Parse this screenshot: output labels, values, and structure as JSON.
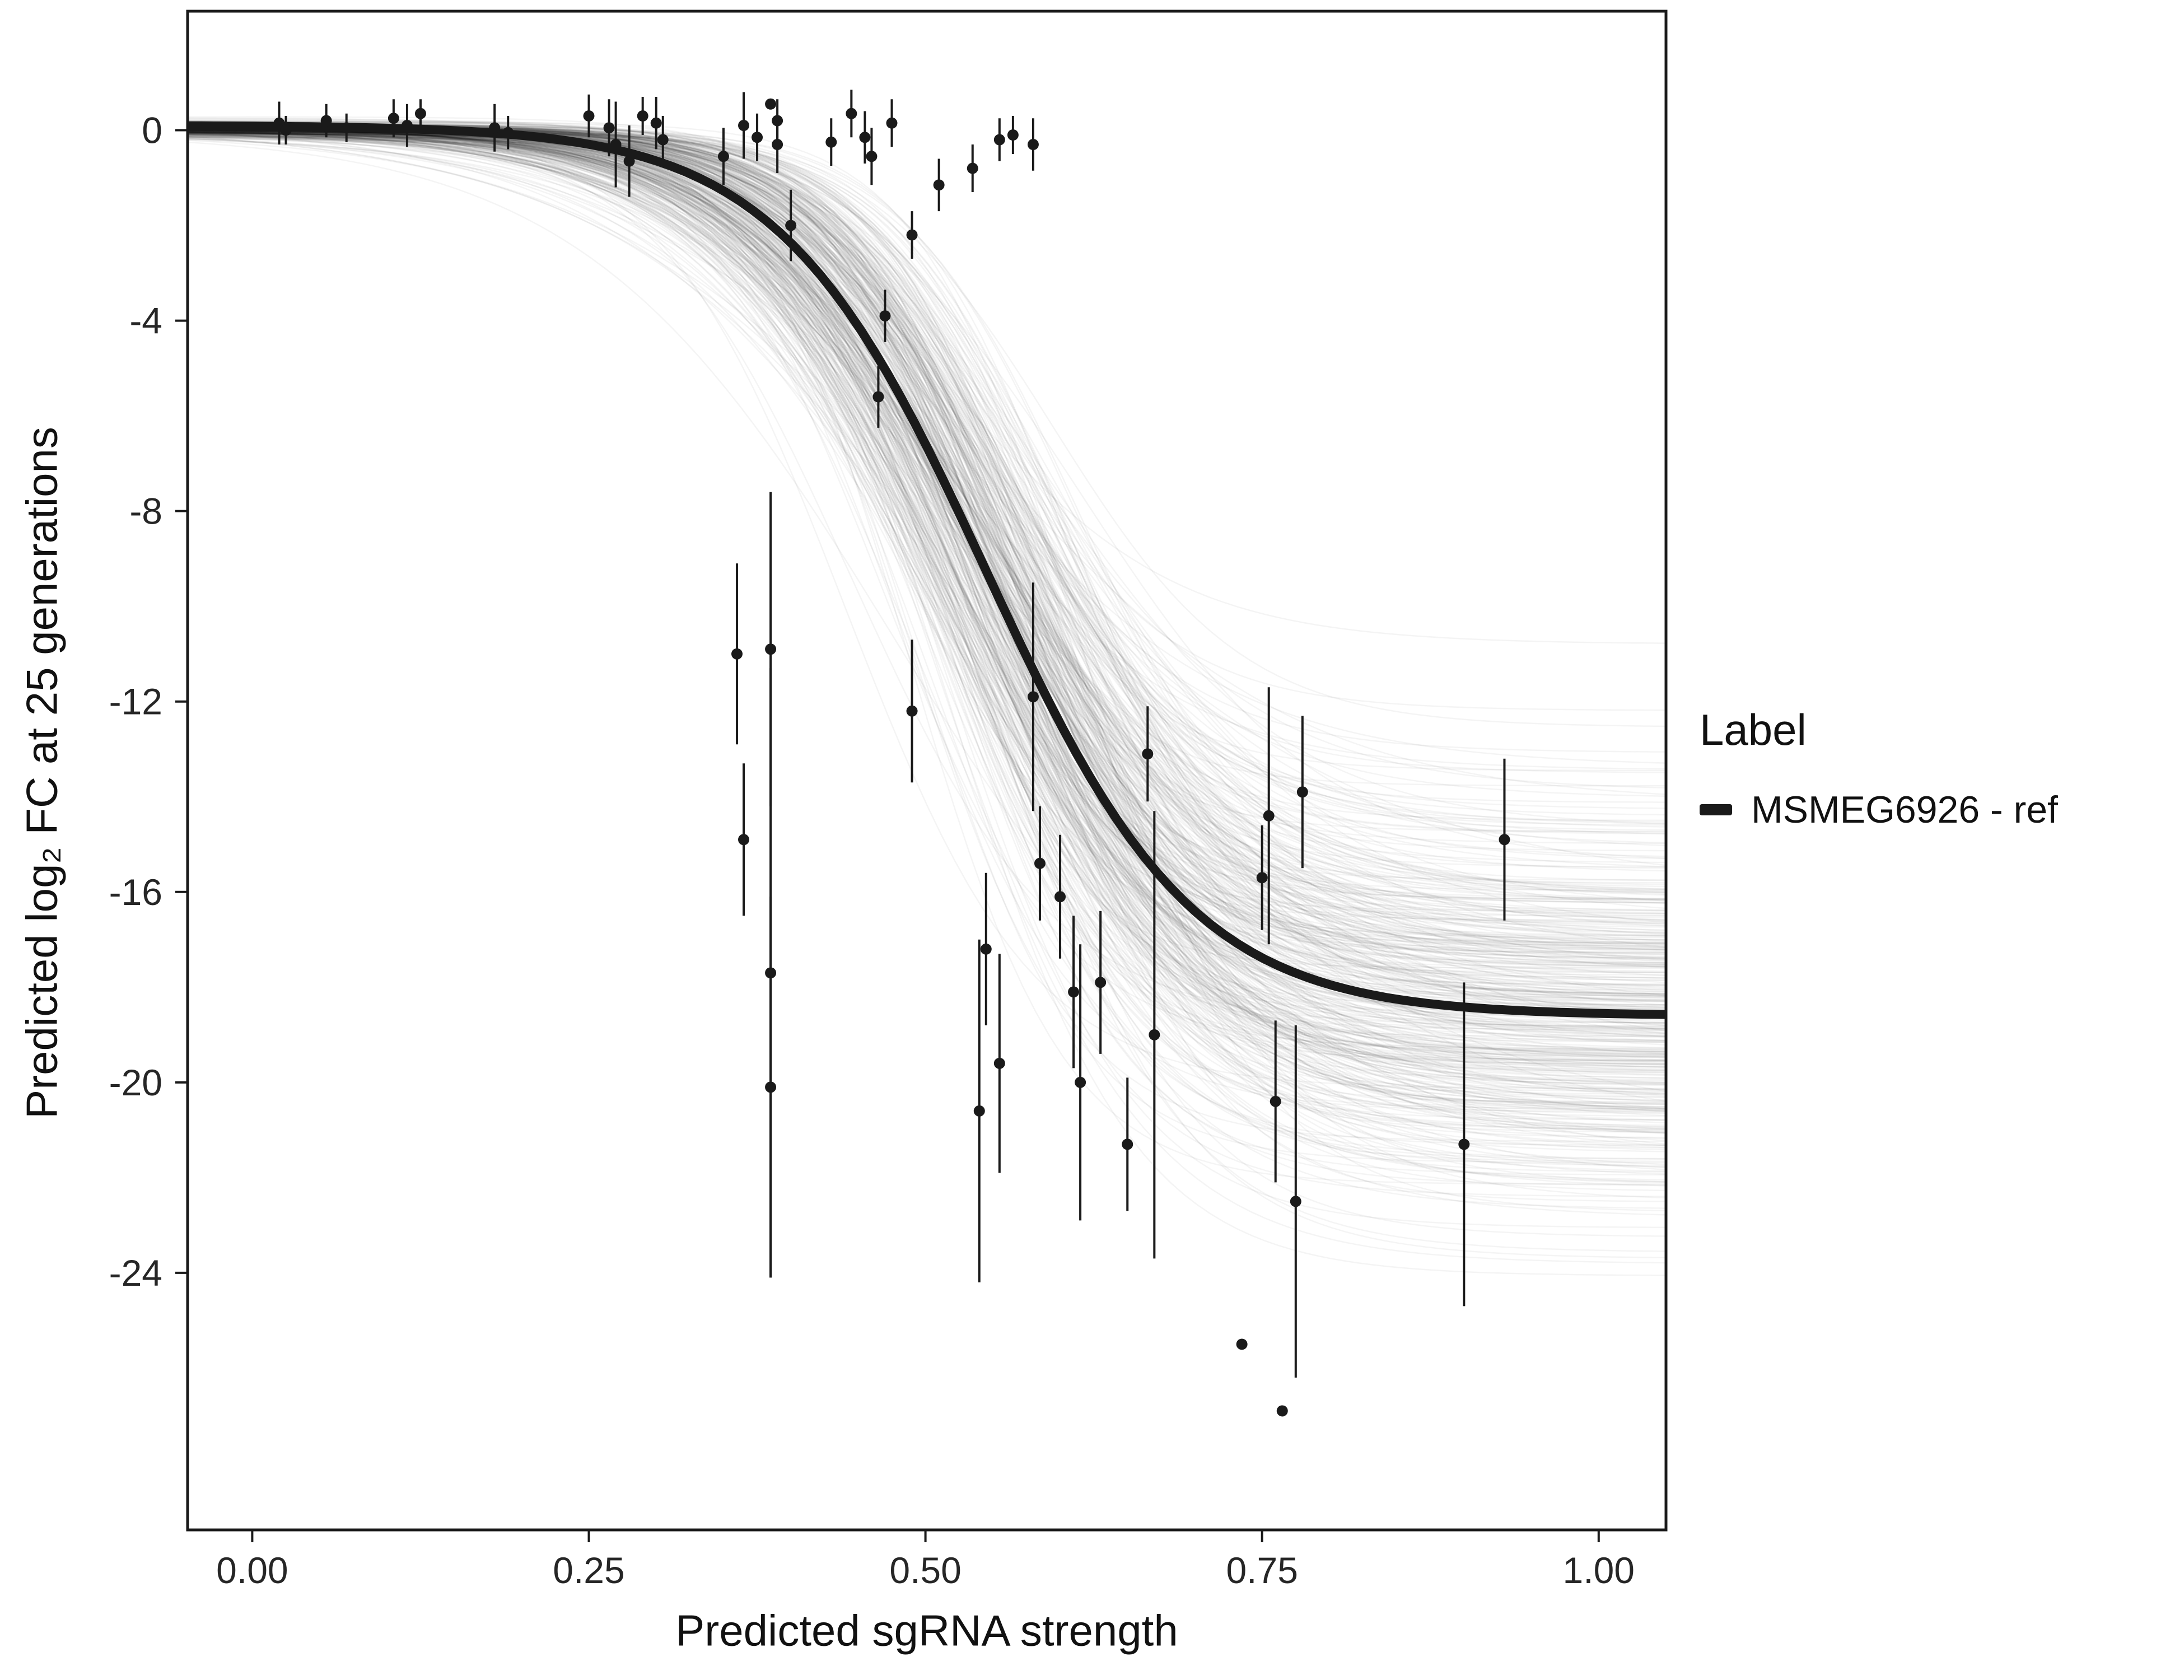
{
  "figure": {
    "background": "#ffffff"
  },
  "axes": {
    "x_label": "Predicted sgRNA strength",
    "y_label": "Predicted  log₂ FC at 25 generations"
  },
  "legend": {
    "title": "Label",
    "items": [
      {
        "label": "MSMEG6926 - ref",
        "color": "#1a1a1a",
        "key": "thick-line"
      }
    ]
  },
  "chart_data": {
    "type": "line",
    "title": "",
    "xlabel": "Predicted sgRNA strength",
    "ylabel": "Predicted log2 FC at 25 generations",
    "xlim": [
      -0.048,
      1.05
    ],
    "ylim": [
      -29.4,
      2.5
    ],
    "x_ticks": [
      0,
      0.25,
      0.5,
      0.75,
      1.0
    ],
    "x_tick_labels": [
      "0.00",
      "0.25",
      "0.50",
      "0.75",
      "1.00"
    ],
    "y_ticks": [
      0,
      -4,
      -8,
      -12,
      -16,
      -20,
      -24
    ],
    "y_tick_labels": [
      "0",
      "-4",
      "-8",
      "-12",
      "-16",
      "-20",
      "-24"
    ],
    "grid": false,
    "legend_position": "right",
    "panel_border_color": "#1a1a1a",
    "fit_curve": {
      "type": "logistic",
      "upper": 0.1,
      "lower": -18.6,
      "midpoint": 0.545,
      "slope": 13,
      "color": "#1a1a1a",
      "width": 16
    },
    "posterior_ensemble": {
      "count": 420,
      "seed": 42,
      "color": "rgba(0,0,0,0.045)",
      "width": 2.5,
      "lower_mean": -18.6,
      "lower_sd": 2.3,
      "midpoint_mean": 0.545,
      "midpoint_sd": 0.032,
      "slope_mean": 13,
      "slope_sd": 2.4,
      "upper_mean": 0.05,
      "upper_sd": 0.08
    },
    "point_style": {
      "color": "#1a1a1a",
      "radius": 10,
      "errorbar_width": 4
    },
    "points": [
      [
        0.02,
        0.15,
        0.45
      ],
      [
        0.025,
        0.0,
        0.3
      ],
      [
        0.055,
        0.2,
        0.35
      ],
      [
        0.07,
        0.05,
        0.3
      ],
      [
        0.105,
        0.25,
        0.4
      ],
      [
        0.115,
        0.1,
        0.45
      ],
      [
        0.125,
        0.35,
        0.3
      ],
      [
        0.18,
        0.05,
        0.5
      ],
      [
        0.19,
        -0.05,
        0.35
      ],
      [
        0.25,
        0.3,
        0.45
      ],
      [
        0.265,
        0.05,
        0.6
      ],
      [
        0.27,
        -0.3,
        0.9
      ],
      [
        0.28,
        -0.65,
        0.75
      ],
      [
        0.29,
        0.3,
        0.4
      ],
      [
        0.3,
        0.15,
        0.55
      ],
      [
        0.305,
        -0.2,
        0.5
      ],
      [
        0.35,
        -0.55,
        0.6
      ],
      [
        0.365,
        0.1,
        0.7
      ],
      [
        0.375,
        -0.15,
        0.5
      ],
      [
        0.385,
        0.55,
        0.1
      ],
      [
        0.39,
        0.2,
        0.45
      ],
      [
        0.39,
        -0.3,
        0.6
      ],
      [
        0.4,
        -2.0,
        0.75
      ],
      [
        0.43,
        -0.25,
        0.5
      ],
      [
        0.445,
        0.35,
        0.5
      ],
      [
        0.455,
        -0.15,
        0.55
      ],
      [
        0.46,
        -0.55,
        0.6
      ],
      [
        0.465,
        -5.6,
        0.65
      ],
      [
        0.47,
        -3.9,
        0.55
      ],
      [
        0.475,
        0.15,
        0.5
      ],
      [
        0.49,
        -2.2,
        0.5
      ],
      [
        0.51,
        -1.15,
        0.55
      ],
      [
        0.535,
        -0.8,
        0.5
      ],
      [
        0.555,
        -0.2,
        0.45
      ],
      [
        0.565,
        -0.1,
        0.4
      ],
      [
        0.58,
        -0.3,
        0.55
      ],
      [
        0.36,
        -11.0,
        1.9
      ],
      [
        0.365,
        -14.9,
        1.6
      ],
      [
        0.385,
        -10.9,
        3.3
      ],
      [
        0.385,
        -17.7,
        6.4
      ],
      [
        0.385,
        -20.1,
        4.0
      ],
      [
        0.49,
        -12.2,
        1.5
      ],
      [
        0.54,
        -20.6,
        3.6
      ],
      [
        0.545,
        -17.2,
        1.6
      ],
      [
        0.555,
        -19.6,
        2.3
      ],
      [
        0.58,
        -11.9,
        2.4
      ],
      [
        0.585,
        -15.4,
        1.2
      ],
      [
        0.6,
        -16.1,
        1.3
      ],
      [
        0.61,
        -18.1,
        1.6
      ],
      [
        0.615,
        -20.0,
        2.9
      ],
      [
        0.63,
        -17.9,
        1.5
      ],
      [
        0.65,
        -21.3,
        1.4
      ],
      [
        0.665,
        -13.1,
        1.0
      ],
      [
        0.67,
        -19.0,
        4.7
      ],
      [
        0.735,
        -25.5,
        0.1
      ],
      [
        0.75,
        -15.7,
        1.1
      ],
      [
        0.755,
        -14.4,
        2.7
      ],
      [
        0.76,
        -20.4,
        1.7
      ],
      [
        0.765,
        -26.9,
        0.1
      ],
      [
        0.775,
        -22.5,
        3.7
      ],
      [
        0.78,
        -13.9,
        1.6
      ],
      [
        0.9,
        -21.3,
        3.4
      ],
      [
        0.93,
        -14.9,
        1.7
      ]
    ]
  }
}
